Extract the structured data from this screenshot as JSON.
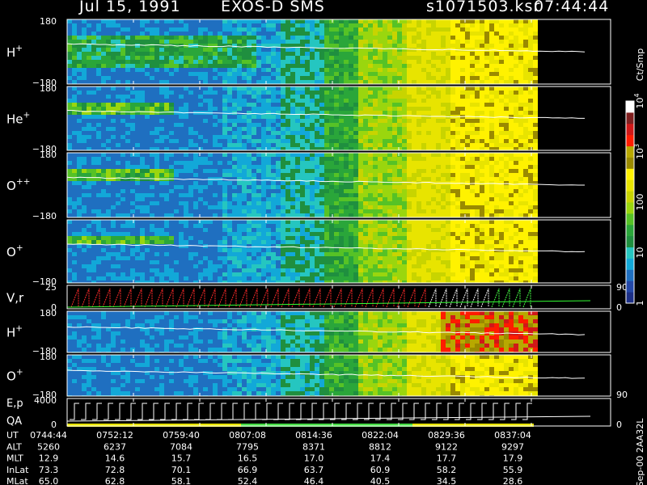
{
  "header": {
    "date": "Jul 15, 1991",
    "instrument": "EXOS-D SMS",
    "file": "s1071503.ksr",
    "time": "07:44:44"
  },
  "colors": {
    "background": "#000000",
    "text": "#ffffff",
    "scale": [
      "#1c2f86",
      "#2448a8",
      "#1f6fc0",
      "#12a8d8",
      "#25c6c0",
      "#1f8f3f",
      "#2aa63a",
      "#56c226",
      "#9ad60e",
      "#c8d400",
      "#e8e400",
      "#fff200",
      "#9a8a00",
      "#b8a800",
      "#ff1c00",
      "#d01818",
      "#802020",
      "#ffffff"
    ]
  },
  "chart_data": {
    "type": "heatmap",
    "x_ticks": [
      "0744:44",
      "0752:12",
      "0759:40",
      "0807:08",
      "0814:36",
      "0822:04",
      "0829:36",
      "0837:04"
    ],
    "panels": [
      {
        "id": "h-plus",
        "label": "H",
        "sup": "+",
        "ymax": "180",
        "ymin": "−180"
      },
      {
        "id": "he-plus",
        "label": "He",
        "sup": "+",
        "ymax": "180",
        "ymin": "−180"
      },
      {
        "id": "o-plusplus",
        "label": "O",
        "sup": "++",
        "ymax": "180",
        "ymin": "−180"
      },
      {
        "id": "o-plus",
        "label": "O",
        "sup": "+",
        "ymax": "",
        "ymin": "−180"
      },
      {
        "id": "vr",
        "label": "V",
        "sup": "",
        "suffix": ",r",
        "ymax": "25",
        "ymin": "0",
        "right_top": "90",
        "right_bottom": "0"
      },
      {
        "id": "h-plus-2",
        "label": "H",
        "sup": "+",
        "ymax": "180",
        "ymin": "−180"
      },
      {
        "id": "o-plus-2",
        "label": "O",
        "sup": "+",
        "ymax": "180",
        "ymin": "−180",
        "right_bottom": "90"
      },
      {
        "id": "ep-qa",
        "label": "E,p",
        "label2": "QA",
        "ymax": "4000",
        "ymin": "0",
        "right_bottom": "0"
      }
    ],
    "colorbar": {
      "unit": "Ct/Smp",
      "labels": [
        {
          "text": "10",
          "sup": "4",
          "value": 10000
        },
        {
          "text": "10",
          "sup": "3",
          "value": 1000
        },
        {
          "text": "100",
          "sup": "",
          "value": 100
        },
        {
          "text": "10",
          "sup": "",
          "value": 10
        },
        {
          "text": "1",
          "sup": "",
          "value": 1
        }
      ]
    },
    "ephemeris": {
      "rows": [
        {
          "label": "UT",
          "values": [
            "0744:44",
            "0752:12",
            "0759:40",
            "0807:08",
            "0814:36",
            "0822:04",
            "0829:36",
            "0837:04"
          ]
        },
        {
          "label": "ALT",
          "values": [
            "5260",
            "6237",
            "7084",
            "7795",
            "8371",
            "8812",
            "9122",
            "9297"
          ]
        },
        {
          "label": "MLT",
          "values": [
            "12.9",
            "14.6",
            "15.7",
            "16.5",
            "17.0",
            "17.4",
            "17.7",
            "17.9"
          ]
        },
        {
          "label": "InLat",
          "values": [
            "73.3",
            "72.8",
            "70.1",
            "66.9",
            "63.7",
            "60.9",
            "58.2",
            "55.9"
          ]
        },
        {
          "label": "MLat",
          "values": [
            "65.0",
            "62.8",
            "58.1",
            "52.4",
            "46.4",
            "40.5",
            "34.5",
            "28.6"
          ]
        }
      ]
    },
    "footer_stamp": "Sep-00 2AA32L"
  }
}
